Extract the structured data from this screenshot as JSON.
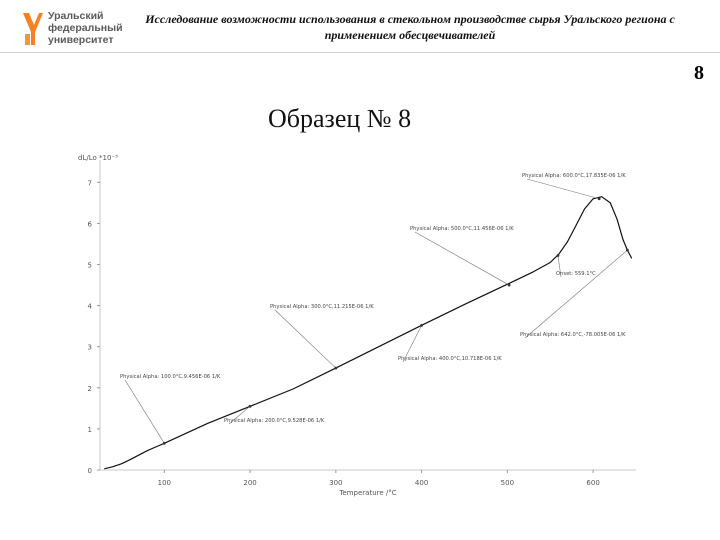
{
  "header": {
    "logo_lines": [
      "Уральский",
      "федеральный",
      "университет"
    ],
    "title": "Исследование возможности использования в стекольном производстве сырья Уральского региона с применением обесцвечивателей",
    "page_number": "8"
  },
  "slide_title": "Образец № 8",
  "colors": {
    "logo_orange": "#f58220",
    "logo_grey": "#5a5a5a",
    "curve": "#111111"
  },
  "chart_data": {
    "type": "line",
    "ylabel": "dL/Lo *10⁻³",
    "xlabel": "Temperature /°C",
    "xlim": [
      25,
      650
    ],
    "ylim": [
      0,
      7.3
    ],
    "xticks": [
      100,
      200,
      300,
      400,
      500,
      600
    ],
    "yticks": [
      0,
      1,
      2,
      3,
      4,
      5,
      6,
      7
    ],
    "series": [
      {
        "x": [
          30,
          40,
          50,
          60,
          70,
          80,
          90,
          100,
          150,
          200,
          250,
          300,
          350,
          400,
          450,
          500,
          530,
          550,
          560,
          570,
          580,
          590,
          600,
          610,
          620,
          628,
          635,
          640,
          645
        ],
        "y": [
          0.03,
          0.08,
          0.15,
          0.25,
          0.36,
          0.47,
          0.56,
          0.65,
          1.13,
          1.55,
          1.97,
          2.48,
          3.0,
          3.52,
          4.03,
          4.52,
          4.82,
          5.05,
          5.25,
          5.55,
          5.95,
          6.35,
          6.6,
          6.65,
          6.5,
          6.1,
          5.6,
          5.35,
          5.15
        ]
      }
    ],
    "annotations": [
      {
        "text": "Physical Alpha: 600.0°C,17.835E-06 1/K",
        "x": 607,
        "y": 6.6
      },
      {
        "text": "Physical Alpha: 500.0°C,11.456E-06 1/K",
        "x": 502,
        "y": 4.5
      },
      {
        "text": "Physical Alpha: 300.0°C,11.215E-06 1/K",
        "x": 300,
        "y": 2.48
      },
      {
        "text": "Onset: 559.1°C",
        "x": 559,
        "y": 5.22
      },
      {
        "text": "Physical Alpha: 400.0°C,10.718E-06 1/K",
        "x": 400,
        "y": 3.52
      },
      {
        "text": "Physical Alpha: 642.0°C,-78.005E-06 1/K",
        "x": 640,
        "y": 5.35
      },
      {
        "text": "Physical Alpha: 100.0°C,9.456E-06 1/K",
        "x": 100,
        "y": 0.65
      },
      {
        "text": "Physical Alpha: 200.0°C,9.528E-06 1/K",
        "x": 200,
        "y": 1.55
      }
    ]
  }
}
